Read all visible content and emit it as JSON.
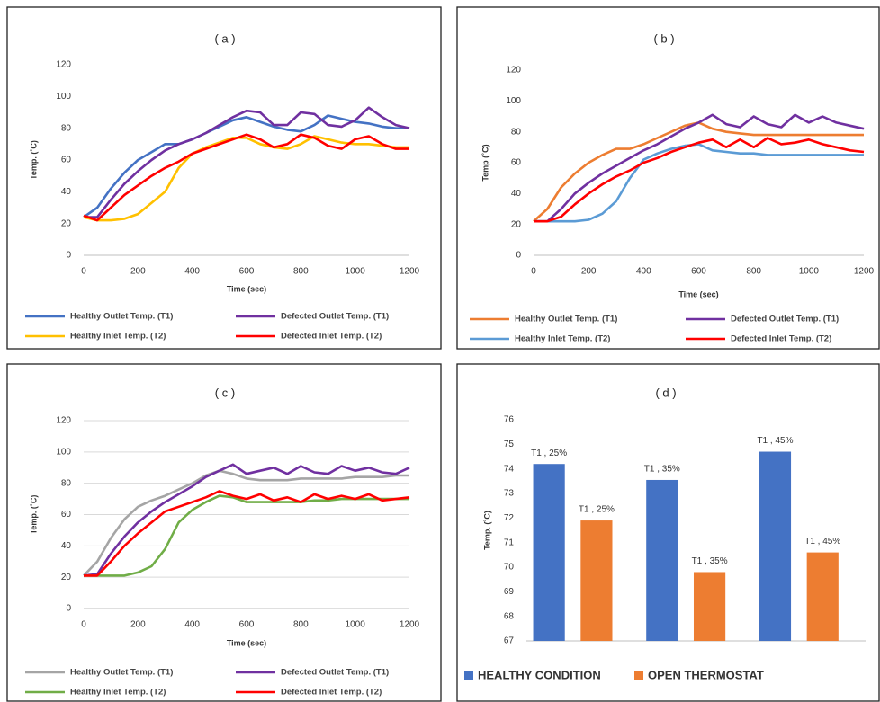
{
  "chart_data": [
    {
      "type": "line",
      "title": "( a )",
      "x_label": "Time (sec)",
      "y_label": "Temp. (˚C)",
      "x": [
        0,
        50,
        100,
        150,
        200,
        250,
        300,
        350,
        400,
        450,
        500,
        550,
        600,
        650,
        700,
        750,
        800,
        850,
        900,
        950,
        1000,
        1050,
        1100,
        1150,
        1200
      ],
      "xlim": [
        0,
        1200
      ],
      "xticks": [
        0,
        200,
        400,
        600,
        800,
        1000,
        1200
      ],
      "ylim": [
        0,
        120
      ],
      "yticks": [
        0,
        20,
        40,
        60,
        80,
        100,
        120
      ],
      "grid": false,
      "series": [
        {
          "name": "Healthy Outlet Temp. (T1)",
          "color": "#4472c4",
          "values": [
            24,
            30,
            42,
            52,
            60,
            65,
            70,
            70,
            73,
            77,
            81,
            85,
            87,
            84,
            81,
            79,
            78,
            82,
            88,
            86,
            84,
            83,
            81,
            80,
            80
          ]
        },
        {
          "name": "Defected Outlet Temp. (T1)",
          "color": "#7030a0",
          "values": [
            24,
            24,
            35,
            45,
            53,
            60,
            66,
            70,
            73,
            77,
            82,
            87,
            91,
            90,
            82,
            82,
            90,
            89,
            82,
            81,
            85,
            93,
            87,
            82,
            80
          ]
        },
        {
          "name": "Healthy Inlet Temp. (T2)",
          "color": "#ffc000",
          "values": [
            24,
            22,
            22,
            23,
            26,
            33,
            40,
            55,
            64,
            68,
            71,
            74,
            74,
            70,
            68,
            67,
            70,
            75,
            73,
            71,
            70,
            70,
            69,
            68,
            68
          ]
        },
        {
          "name": "Defected Inlet Temp. (T2)",
          "color": "#ff0000",
          "values": [
            25,
            22,
            30,
            38,
            44,
            50,
            55,
            59,
            64,
            67,
            70,
            73,
            76,
            73,
            68,
            70,
            76,
            74,
            69,
            67,
            73,
            75,
            70,
            67,
            67
          ]
        }
      ]
    },
    {
      "type": "line",
      "title": "( b )",
      "x_label": "Time (sec)",
      "y_label": "Temp (˚C)",
      "x": [
        0,
        50,
        100,
        150,
        200,
        250,
        300,
        350,
        400,
        450,
        500,
        550,
        600,
        650,
        700,
        750,
        800,
        850,
        900,
        950,
        1000,
        1050,
        1100,
        1150,
        1200
      ],
      "xlim": [
        0,
        1200
      ],
      "xticks": [
        0,
        200,
        400,
        600,
        800,
        1000,
        1200
      ],
      "ylim": [
        0,
        120
      ],
      "yticks": [
        0,
        20,
        40,
        60,
        80,
        100,
        120
      ],
      "grid": false,
      "series": [
        {
          "name": "Healthy Outlet Temp. (T1)",
          "color": "#ed7d31",
          "values": [
            22,
            30,
            44,
            53,
            60,
            65,
            69,
            69,
            72,
            76,
            80,
            84,
            86,
            82,
            80,
            79,
            78,
            78,
            78,
            78,
            78,
            78,
            78,
            78,
            78
          ]
        },
        {
          "name": "Defected Outlet Temp. (T1)",
          "color": "#7030a0",
          "values": [
            22,
            22,
            30,
            40,
            47,
            53,
            58,
            63,
            68,
            72,
            77,
            82,
            86,
            91,
            85,
            83,
            90,
            85,
            83,
            91,
            86,
            90,
            86,
            84,
            82
          ]
        },
        {
          "name": "Healthy Inlet Temp. (T2)",
          "color": "#5b9bd5",
          "values": [
            22,
            22,
            22,
            22,
            23,
            27,
            35,
            50,
            62,
            66,
            69,
            71,
            72,
            68,
            67,
            66,
            66,
            65,
            65,
            65,
            65,
            65,
            65,
            65,
            65
          ]
        },
        {
          "name": "Defected Inlet Temp. (T2)",
          "color": "#ff0000",
          "values": [
            22,
            22,
            25,
            33,
            40,
            46,
            51,
            55,
            60,
            63,
            67,
            70,
            73,
            75,
            70,
            75,
            70,
            76,
            72,
            73,
            75,
            72,
            70,
            68,
            67
          ]
        }
      ]
    },
    {
      "type": "line",
      "title": "( c )",
      "x_label": "Time (sec)",
      "y_label": "Temp. (˚C)",
      "x": [
        0,
        50,
        100,
        150,
        200,
        250,
        300,
        350,
        400,
        450,
        500,
        550,
        600,
        650,
        700,
        750,
        800,
        850,
        900,
        950,
        1000,
        1050,
        1100,
        1150,
        1200
      ],
      "xlim": [
        0,
        1200
      ],
      "xticks": [
        0,
        200,
        400,
        600,
        800,
        1000,
        1200
      ],
      "ylim": [
        0,
        120
      ],
      "yticks": [
        0,
        20,
        40,
        60,
        80,
        100,
        120
      ],
      "grid": true,
      "series": [
        {
          "name": "Healthy Outlet Temp. (T1)",
          "color": "#a5a5a5",
          "values": [
            21,
            30,
            45,
            57,
            65,
            69,
            72,
            76,
            80,
            85,
            88,
            86,
            83,
            82,
            82,
            82,
            83,
            83,
            83,
            83,
            84,
            84,
            84,
            85,
            85
          ]
        },
        {
          "name": "Defected Outlet Temp. (T1)",
          "color": "#7030a0",
          "values": [
            21,
            22,
            35,
            46,
            55,
            62,
            68,
            73,
            78,
            84,
            88,
            92,
            86,
            88,
            90,
            86,
            91,
            87,
            86,
            91,
            88,
            90,
            87,
            86,
            90
          ]
        },
        {
          "name": "Healthy Inlet Temp. (T2)",
          "color": "#70ad47",
          "values": [
            21,
            21,
            21,
            21,
            23,
            27,
            38,
            55,
            63,
            68,
            72,
            71,
            68,
            68,
            68,
            68,
            68,
            69,
            69,
            70,
            70,
            70,
            70,
            70,
            70
          ]
        },
        {
          "name": "Defected Inlet Temp. (T2)",
          "color": "#ff0000",
          "values": [
            21,
            21,
            30,
            40,
            48,
            55,
            62,
            65,
            68,
            71,
            75,
            72,
            70,
            73,
            69,
            71,
            68,
            73,
            70,
            72,
            70,
            73,
            69,
            70,
            71
          ]
        }
      ]
    },
    {
      "type": "bar",
      "title": "( d )",
      "y_label": "Temp. (˚C)",
      "categories": [
        null,
        null,
        null
      ],
      "ylim": [
        67,
        76
      ],
      "yticks": [
        67,
        68,
        69,
        70,
        71,
        72,
        73,
        74,
        75,
        76
      ],
      "grid": false,
      "series": [
        {
          "name": "HEALTHY CONDITION",
          "color": "#4472c4",
          "values": [
            74.2,
            73.55,
            74.7
          ],
          "value_labels": [
            "T1 , 25%",
            "T1 , 35%",
            "T1 , 45%"
          ]
        },
        {
          "name": "OPEN THERMOSTAT",
          "color": "#ed7d31",
          "values": [
            71.9,
            69.8,
            70.6
          ],
          "value_labels": [
            "T1 , 25%",
            "T1 , 35%",
            "T1 , 45%"
          ]
        }
      ]
    }
  ]
}
